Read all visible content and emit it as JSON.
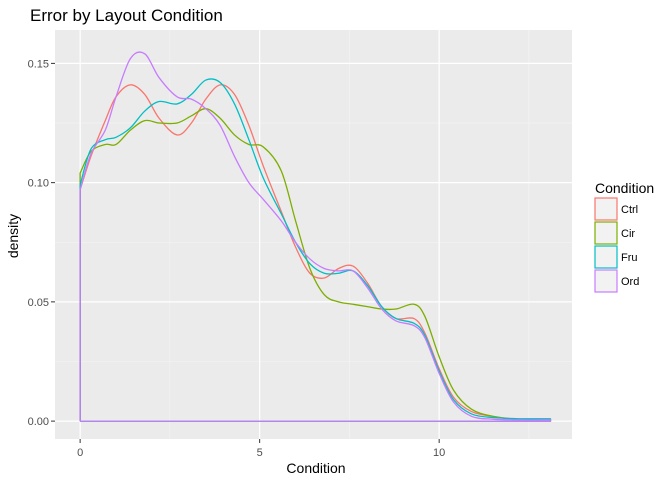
{
  "chart_data": {
    "type": "line",
    "title": "Error by Layout Condition",
    "xlabel": "Condition",
    "ylabel": "density",
    "xlim": [
      -0.7,
      13.7
    ],
    "ylim": [
      -0.0075,
      0.164
    ],
    "x_ticks": [
      0,
      5,
      10
    ],
    "x_tick_labels": [
      "0",
      "5",
      "10"
    ],
    "y_ticks": [
      0.0,
      0.05,
      0.1,
      0.15
    ],
    "y_tick_labels": [
      "0.00",
      "0.05",
      "0.10",
      "0.15"
    ],
    "grid": true,
    "legend": {
      "title": "Condition",
      "position": "right",
      "entries": [
        "Ctrl",
        "Cir",
        "Fru",
        "Ord"
      ]
    },
    "series": [
      {
        "name": "Ctrl",
        "color": "#F8766D",
        "points": [
          [
            0,
            0
          ],
          [
            0,
            0.097
          ],
          [
            0.3,
            0.111
          ],
          [
            0.7,
            0.126
          ],
          [
            1,
            0.136
          ],
          [
            1.4,
            0.141
          ],
          [
            1.8,
            0.137
          ],
          [
            2.2,
            0.127
          ],
          [
            2.7,
            0.12
          ],
          [
            3.1,
            0.125
          ],
          [
            3.5,
            0.135
          ],
          [
            3.9,
            0.141
          ],
          [
            4.3,
            0.137
          ],
          [
            4.7,
            0.124
          ],
          [
            5.1,
            0.107
          ],
          [
            5.6,
            0.088
          ],
          [
            6,
            0.073
          ],
          [
            6.4,
            0.062
          ],
          [
            6.8,
            0.06
          ],
          [
            7.2,
            0.064
          ],
          [
            7.6,
            0.065
          ],
          [
            8,
            0.058
          ],
          [
            8.4,
            0.048
          ],
          [
            8.8,
            0.043
          ],
          [
            9.3,
            0.043
          ],
          [
            9.6,
            0.037
          ],
          [
            10,
            0.022
          ],
          [
            10.4,
            0.01
          ],
          [
            10.9,
            0.004
          ],
          [
            11.5,
            0.002
          ],
          [
            12.2,
            0.0008
          ],
          [
            13.1,
            0.0006
          ],
          [
            13.1,
            0
          ],
          [
            0,
            0
          ]
        ]
      },
      {
        "name": "Cir",
        "color": "#7CAE00",
        "points": [
          [
            0,
            0
          ],
          [
            0,
            0.104
          ],
          [
            0.3,
            0.113
          ],
          [
            0.7,
            0.116
          ],
          [
            1,
            0.116
          ],
          [
            1.4,
            0.122
          ],
          [
            1.8,
            0.126
          ],
          [
            2.2,
            0.125
          ],
          [
            2.7,
            0.125
          ],
          [
            3.1,
            0.128
          ],
          [
            3.5,
            0.131
          ],
          [
            3.9,
            0.127
          ],
          [
            4.3,
            0.12
          ],
          [
            4.7,
            0.116
          ],
          [
            5.1,
            0.115
          ],
          [
            5.6,
            0.105
          ],
          [
            6,
            0.084
          ],
          [
            6.4,
            0.064
          ],
          [
            6.8,
            0.053
          ],
          [
            7.2,
            0.05
          ],
          [
            7.6,
            0.049
          ],
          [
            8,
            0.048
          ],
          [
            8.4,
            0.047
          ],
          [
            8.8,
            0.047
          ],
          [
            9.3,
            0.049
          ],
          [
            9.6,
            0.044
          ],
          [
            10,
            0.027
          ],
          [
            10.4,
            0.013
          ],
          [
            10.9,
            0.005
          ],
          [
            11.5,
            0.002
          ],
          [
            12.2,
            0.0008
          ],
          [
            13.1,
            0.0008
          ],
          [
            13.1,
            0
          ],
          [
            0,
            0
          ]
        ]
      },
      {
        "name": "Fru",
        "color": "#00BFC4",
        "points": [
          [
            0,
            0
          ],
          [
            0,
            0.099
          ],
          [
            0.3,
            0.114
          ],
          [
            0.7,
            0.118
          ],
          [
            1,
            0.119
          ],
          [
            1.4,
            0.123
          ],
          [
            1.8,
            0.13
          ],
          [
            2.2,
            0.134
          ],
          [
            2.7,
            0.133
          ],
          [
            3.1,
            0.137
          ],
          [
            3.5,
            0.143
          ],
          [
            3.9,
            0.142
          ],
          [
            4.3,
            0.133
          ],
          [
            4.7,
            0.118
          ],
          [
            5.1,
            0.102
          ],
          [
            5.6,
            0.087
          ],
          [
            6,
            0.075
          ],
          [
            6.4,
            0.066
          ],
          [
            6.8,
            0.062
          ],
          [
            7.2,
            0.062
          ],
          [
            7.6,
            0.063
          ],
          [
            8,
            0.057
          ],
          [
            8.4,
            0.048
          ],
          [
            8.8,
            0.043
          ],
          [
            9.3,
            0.041
          ],
          [
            9.6,
            0.036
          ],
          [
            10,
            0.021
          ],
          [
            10.4,
            0.009
          ],
          [
            10.9,
            0.003
          ],
          [
            11.5,
            0.0015
          ],
          [
            12.2,
            0.001
          ],
          [
            13.1,
            0.001
          ],
          [
            13.1,
            0
          ],
          [
            0,
            0
          ]
        ]
      },
      {
        "name": "Ord",
        "color": "#C77CFF",
        "points": [
          [
            0,
            0
          ],
          [
            0,
            0.097
          ],
          [
            0.3,
            0.112
          ],
          [
            0.7,
            0.122
          ],
          [
            1,
            0.136
          ],
          [
            1.4,
            0.152
          ],
          [
            1.8,
            0.154
          ],
          [
            2.2,
            0.144
          ],
          [
            2.7,
            0.136
          ],
          [
            3.1,
            0.135
          ],
          [
            3.5,
            0.131
          ],
          [
            3.9,
            0.124
          ],
          [
            4.3,
            0.111
          ],
          [
            4.7,
            0.1
          ],
          [
            5.1,
            0.093
          ],
          [
            5.6,
            0.084
          ],
          [
            6,
            0.075
          ],
          [
            6.4,
            0.068
          ],
          [
            6.8,
            0.064
          ],
          [
            7.2,
            0.063
          ],
          [
            7.6,
            0.063
          ],
          [
            8,
            0.056
          ],
          [
            8.4,
            0.047
          ],
          [
            8.8,
            0.042
          ],
          [
            9.3,
            0.04
          ],
          [
            9.6,
            0.035
          ],
          [
            10,
            0.02
          ],
          [
            10.4,
            0.008
          ],
          [
            10.9,
            0.002
          ],
          [
            11.5,
            0.0008
          ],
          [
            12.2,
            0.0005
          ],
          [
            13.1,
            0.0005
          ],
          [
            13.1,
            0
          ],
          [
            0,
            0
          ]
        ]
      }
    ]
  }
}
